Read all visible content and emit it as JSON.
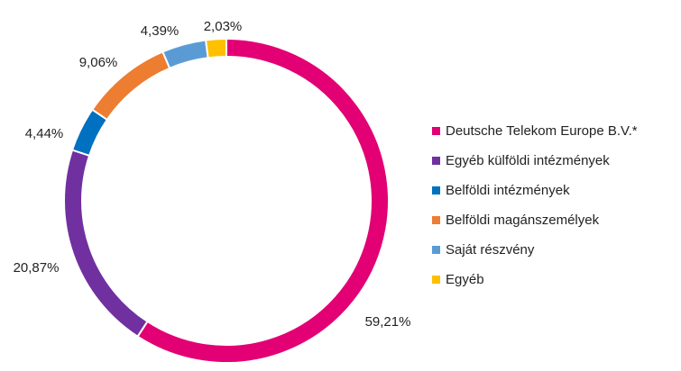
{
  "chart_data": {
    "type": "pie",
    "variant": "donut",
    "slices": [
      {
        "name": "Deutsche Telekom Europe B.V.*",
        "value": 59.21,
        "label": "59,21%",
        "color": "#E20074"
      },
      {
        "name": "Egyéb külföldi intézmények",
        "value": 20.87,
        "label": "20,87%",
        "color": "#7030A0"
      },
      {
        "name": "Belföldi intézmények",
        "value": 4.44,
        "label": "4,44%",
        "color": "#0070C0"
      },
      {
        "name": "Belföldi magánszemélyek",
        "value": 9.06,
        "label": "9,06%",
        "color": "#ED7D31"
      },
      {
        "name": "Saját részvény",
        "value": 4.39,
        "label": "4,39%",
        "color": "#5B9BD5"
      },
      {
        "name": "Egyéb",
        "value": 2.03,
        "label": "2,03%",
        "color": "#FFC000"
      }
    ],
    "title": "",
    "legend": "right"
  }
}
